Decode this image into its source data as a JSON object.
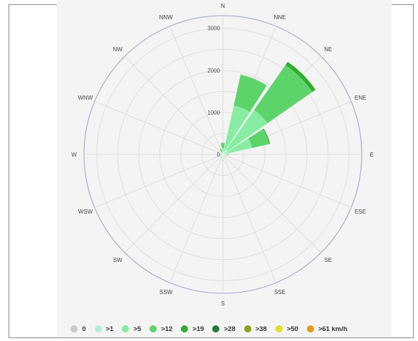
{
  "chart_data": {
    "type": "windrose",
    "directions": [
      "N",
      "NNE",
      "NE",
      "ENE",
      "E",
      "ESE",
      "SE",
      "SSE",
      "S",
      "SSW",
      "SW",
      "WSW",
      "W",
      "WNW",
      "NW",
      "NNW"
    ],
    "radial_ticks": [
      "0",
      "1000",
      "2000",
      "3000"
    ],
    "rmax": 3300,
    "series": [
      {
        "name": "0",
        "color": "#c8c8c8",
        "values": [
          0,
          0,
          0,
          0,
          0,
          0,
          0,
          0,
          0,
          0,
          0,
          0,
          0,
          0,
          0,
          0
        ]
      },
      {
        "name": ">1",
        "color": "#aff0d4",
        "values": [
          70,
          90,
          140,
          90,
          90,
          50,
          40,
          30,
          120,
          40,
          30,
          20,
          30,
          20,
          20,
          20
        ]
      },
      {
        "name": ">5",
        "color": "#86eda2",
        "values": [
          80,
          1100,
          1150,
          620,
          50,
          20,
          10,
          10,
          30,
          10,
          10,
          10,
          10,
          10,
          10,
          30
        ]
      },
      {
        "name": ">12",
        "color": "#5dd46a",
        "values": [
          130,
          750,
          1300,
          410,
          0,
          0,
          0,
          0,
          0,
          0,
          0,
          0,
          0,
          0,
          0,
          90
        ]
      },
      {
        "name": ">19",
        "color": "#2fae2f",
        "values": [
          0,
          10,
          100,
          30,
          0,
          0,
          0,
          0,
          0,
          0,
          0,
          0,
          0,
          0,
          0,
          0
        ]
      },
      {
        "name": ">28",
        "color": "#1f7a3a",
        "values": [
          0,
          0,
          0,
          0,
          0,
          0,
          0,
          0,
          0,
          0,
          0,
          0,
          0,
          0,
          0,
          0
        ]
      },
      {
        "name": ">38",
        "color": "#8aa21c",
        "values": [
          0,
          0,
          0,
          0,
          0,
          0,
          0,
          0,
          0,
          0,
          0,
          0,
          0,
          0,
          0,
          0
        ]
      },
      {
        "name": ">50",
        "color": "#e3df22",
        "values": [
          0,
          0,
          0,
          0,
          0,
          0,
          0,
          0,
          0,
          0,
          0,
          0,
          0,
          0,
          0,
          0
        ]
      },
      {
        "name": ">61 km/h",
        "color": "#e39a16",
        "values": [
          0,
          0,
          0,
          0,
          0,
          0,
          0,
          0,
          0,
          0,
          0,
          0,
          0,
          0,
          0,
          0
        ]
      }
    ]
  }
}
